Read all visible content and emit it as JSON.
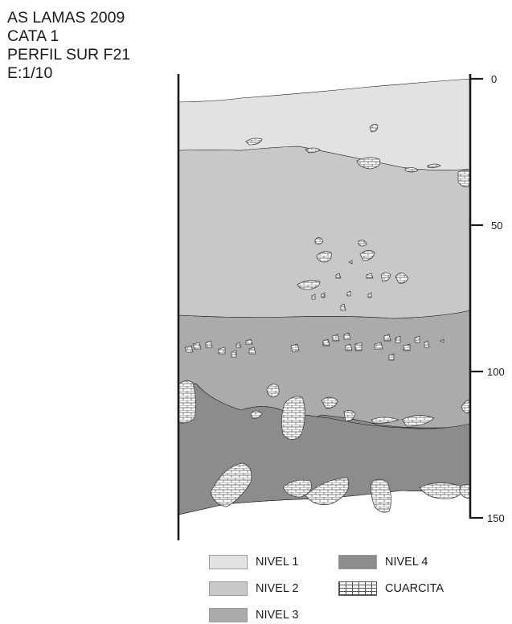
{
  "title": {
    "line1": "AS LAMAS 2009",
    "line2": "CATA 1",
    "line3": "PERFIL SUR F21",
    "line4": "E:1/10"
  },
  "scale": {
    "ticks": [
      "0",
      "50",
      "100",
      "150"
    ]
  },
  "colors": {
    "nivel1": "#e2e2e2",
    "nivel2": "#c8c8c8",
    "nivel3": "#ababab",
    "nivel4": "#8c8c8c",
    "line": "#1a1a1a"
  },
  "legend": {
    "nivel1": "NIVEL 1",
    "nivel2": "NIVEL 2",
    "nivel3": "NIVEL 3",
    "nivel4": "NIVEL 4",
    "cuarcita": "CUARCITA"
  }
}
